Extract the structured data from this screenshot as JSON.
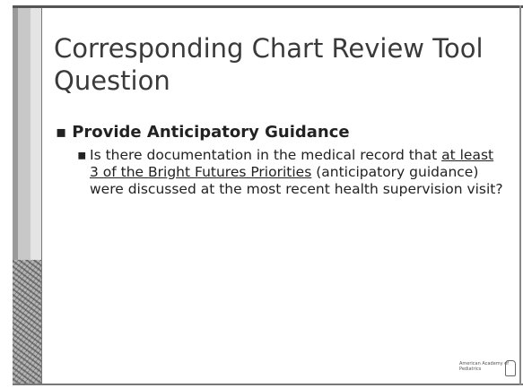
{
  "title": "Corresponding Chart Review Tool Question",
  "bullets": [
    {
      "text": "Provide Anticipatory Guidance",
      "sub": [
        {
          "parts": [
            "Is there documentation in the medical record that ",
            "at least 3 of the Bright Futures Priorities",
            " (anticipatory guidance) were discussed at the most recent health supervision visit?"
          ]
        }
      ]
    }
  ],
  "logo": {
    "text": "American Academy of Pediatrics"
  }
}
